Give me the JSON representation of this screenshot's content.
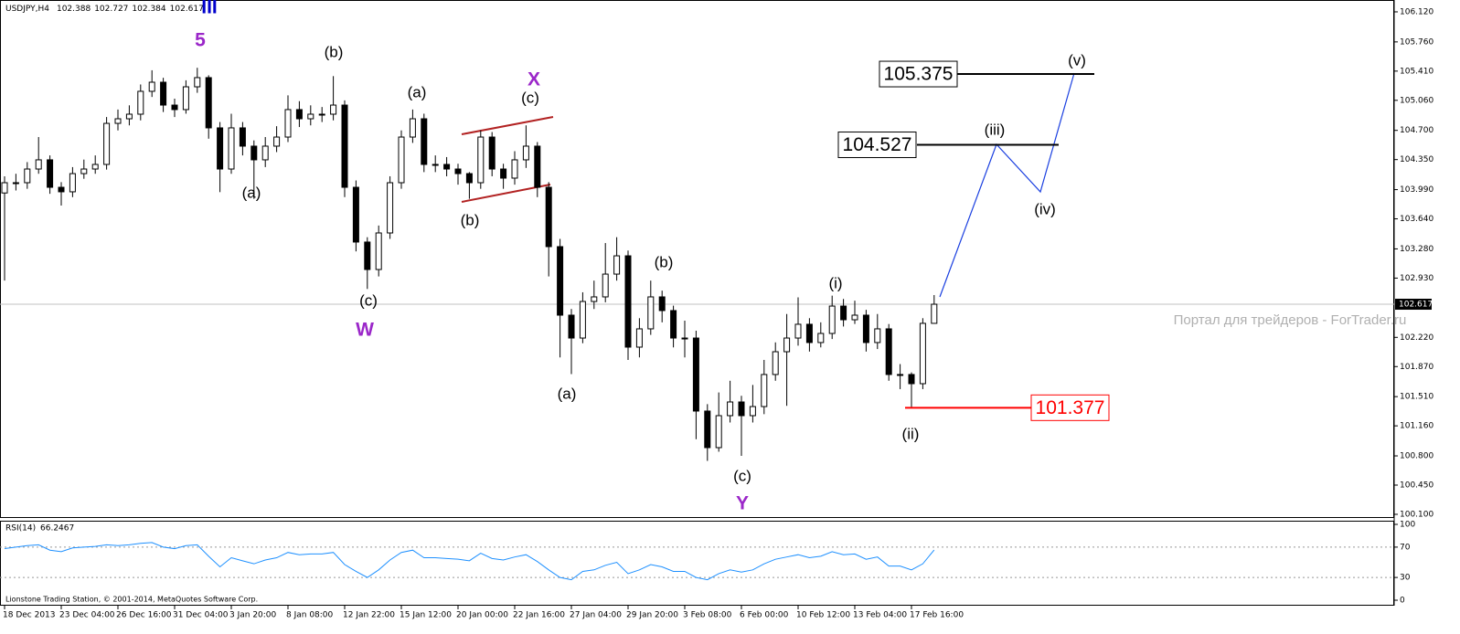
{
  "chart_data": {
    "type": "candlestick",
    "symbol": "USDJPY,H4",
    "categories": [
      "18 Dec 2013",
      null,
      null,
      null,
      null,
      "23 Dec 04:00",
      null,
      null,
      null,
      null,
      "26 Dec 16:00",
      null,
      null,
      null,
      null,
      "31 Dec 04:00",
      null,
      null,
      null,
      null,
      "3 Jan 20:00",
      null,
      null,
      null,
      null,
      "8 Jan 08:00",
      null,
      null,
      null,
      null,
      "12 Jan 22:00",
      null,
      null,
      null,
      null,
      "15 Jan 12:00",
      null,
      null,
      null,
      null,
      "20 Jan 00:00",
      null,
      null,
      null,
      null,
      "22 Jan 16:00",
      null,
      null,
      null,
      null,
      "27 Jan 04:00",
      null,
      null,
      null,
      null,
      "29 Jan 20:00",
      null,
      null,
      null,
      null,
      "3 Feb 08:00",
      null,
      null,
      null,
      null,
      "6 Feb 00:00",
      null,
      null,
      null,
      null,
      "10 Feb 12:00",
      null,
      null,
      null,
      null,
      "13 Feb 04:00",
      null,
      null,
      null,
      null,
      "17 Feb 16:00",
      null,
      null
    ],
    "open": [
      103.95,
      104.073,
      104.073,
      104.237,
      104.347,
      104.018,
      103.964,
      104.182,
      104.237,
      104.292,
      104.784,
      104.839,
      104.894,
      105.168,
      105.277,
      105.003,
      104.949,
      105.222,
      105.332,
      104.73,
      104.237,
      104.73,
      104.511,
      104.347,
      104.511,
      104.62,
      104.949,
      104.839,
      104.894,
      104.894,
      105.003,
      104.018,
      103.362,
      103.033,
      103.471,
      104.073,
      104.62,
      104.839,
      104.292,
      104.292,
      104.237,
      104.182,
      104.073,
      104.62,
      104.237,
      104.128,
      104.347,
      104.511,
      104.018,
      103.307,
      102.486,
      102.212,
      102.65,
      102.705,
      102.978,
      103.197,
      102.103,
      102.322,
      102.705,
      102.541,
      102.212,
      102.212,
      101.337,
      100.899,
      101.282,
      101.446,
      101.282,
      101.391,
      101.775,
      102.048,
      102.212,
      102.377,
      102.158,
      102.267,
      102.595,
      102.431,
      102.486,
      102.158,
      102.322,
      101.775,
      101.775,
      101.665,
      102.388
    ],
    "high": [
      104.15,
      104.18,
      104.32,
      104.62,
      104.4,
      104.08,
      104.26,
      104.35,
      104.4,
      104.86,
      104.95,
      105.0,
      105.25,
      105.42,
      105.33,
      105.08,
      105.3,
      105.45,
      105.36,
      104.8,
      104.9,
      104.8,
      104.58,
      104.62,
      104.75,
      105.12,
      105.05,
      105.0,
      104.98,
      105.35,
      105.06,
      104.1,
      103.42,
      103.56,
      104.15,
      104.7,
      104.95,
      104.9,
      104.4,
      104.38,
      104.3,
      104.2,
      104.7,
      104.68,
      104.3,
      104.45,
      104.76,
      104.56,
      104.08,
      103.4,
      102.56,
      102.76,
      102.9,
      103.35,
      103.42,
      103.26,
      102.45,
      102.9,
      102.78,
      102.6,
      102.42,
      102.3,
      101.42,
      101.56,
      101.7,
      101.52,
      101.65,
      101.95,
      102.16,
      102.5,
      102.7,
      102.45,
      102.4,
      102.72,
      102.68,
      102.66,
      102.55,
      102.5,
      102.38,
      101.9,
      101.8,
      102.45,
      102.727
    ],
    "low": [
      102.9,
      103.98,
      104.0,
      104.18,
      103.94,
      103.8,
      103.9,
      104.12,
      104.18,
      104.23,
      104.7,
      104.76,
      104.82,
      105.1,
      104.92,
      104.86,
      104.9,
      105.15,
      104.6,
      103.96,
      104.18,
      104.4,
      103.88,
      104.26,
      104.44,
      104.56,
      104.74,
      104.76,
      104.8,
      104.82,
      103.9,
      103.25,
      102.8,
      102.95,
      103.4,
      104.0,
      104.55,
      104.2,
      104.2,
      104.15,
      104.05,
      103.88,
      104.0,
      104.15,
      104.0,
      104.05,
      104.25,
      103.9,
      102.95,
      101.98,
      101.78,
      102.15,
      102.56,
      102.64,
      102.9,
      101.95,
      101.98,
      102.25,
      102.4,
      102.1,
      101.98,
      101.0,
      100.74,
      100.85,
      101.2,
      100.8,
      101.2,
      101.3,
      101.7,
      101.4,
      102.12,
      102.05,
      102.1,
      102.2,
      102.35,
      102.38,
      102.05,
      102.08,
      101.7,
      101.6,
      101.38,
      101.6,
      102.384
    ],
    "close": [
      104.073,
      104.073,
      104.237,
      104.347,
      104.018,
      103.964,
      104.182,
      104.237,
      104.292,
      104.784,
      104.839,
      104.894,
      105.168,
      105.277,
      105.003,
      104.949,
      105.222,
      105.332,
      104.73,
      104.237,
      104.73,
      104.511,
      104.347,
      104.511,
      104.62,
      104.949,
      104.839,
      104.894,
      104.894,
      105.003,
      104.018,
      103.362,
      103.033,
      103.471,
      104.073,
      104.62,
      104.839,
      104.292,
      104.292,
      104.237,
      104.182,
      104.073,
      104.62,
      104.237,
      104.128,
      104.347,
      104.511,
      104.018,
      103.307,
      102.486,
      102.212,
      102.65,
      102.705,
      102.978,
      103.197,
      102.103,
      102.322,
      102.705,
      102.541,
      102.212,
      102.212,
      101.337,
      100.899,
      101.282,
      101.446,
      101.282,
      101.391,
      101.775,
      102.048,
      102.212,
      102.377,
      102.158,
      102.267,
      102.595,
      102.431,
      102.486,
      102.158,
      102.322,
      101.775,
      101.775,
      101.665,
      102.388,
      102.617
    ],
    "ylim": [
      100.067,
      106.262
    ],
    "yticks": [
      {
        "value": 106.12,
        "label": "106.120"
      },
      {
        "value": 105.76,
        "label": "105.760"
      },
      {
        "value": 105.41,
        "label": "105.410"
      },
      {
        "value": 105.06,
        "label": "105.060"
      },
      {
        "value": 104.7,
        "label": "104.700"
      },
      {
        "value": 104.35,
        "label": "104.350"
      },
      {
        "value": 103.99,
        "label": "103.990"
      },
      {
        "value": 103.64,
        "label": "103.640"
      },
      {
        "value": 103.28,
        "label": "103.280"
      },
      {
        "value": 102.93,
        "label": "102.930"
      },
      {
        "value": 102.22,
        "label": "102.220"
      },
      {
        "value": 101.87,
        "label": "101.870"
      },
      {
        "value": 101.51,
        "label": "101.510"
      },
      {
        "value": 101.16,
        "label": "101.160"
      },
      {
        "value": 100.8,
        "label": "100.800"
      },
      {
        "value": 100.45,
        "label": "100.450"
      },
      {
        "value": 100.1,
        "label": "100.100"
      }
    ],
    "levels": [
      {
        "value": 105.375,
        "color": "#000000"
      },
      {
        "value": 104.527,
        "color": "#000000"
      },
      {
        "value": 101.377,
        "color": "#ff0000"
      }
    ],
    "annotations": [
      {
        "text": "III",
        "color": "#0000cc"
      },
      {
        "text": "5",
        "color": "#9b27c9"
      },
      {
        "text": "(b)",
        "color": "#000000"
      },
      {
        "text": "(a)",
        "color": "#000000"
      },
      {
        "text": "(c)",
        "color": "#000000"
      },
      {
        "text": "W",
        "color": "#9b27c9"
      },
      {
        "text": "(a)",
        "color": "#000000"
      },
      {
        "text": "X",
        "color": "#9b27c9"
      },
      {
        "text": "(c)",
        "color": "#000000"
      },
      {
        "text": "(b)",
        "color": "#000000"
      },
      {
        "text": "(a)",
        "color": "#000000"
      },
      {
        "text": "(b)",
        "color": "#000000"
      },
      {
        "text": "(c)",
        "color": "#000000"
      },
      {
        "text": "Y",
        "color": "#9b27c9"
      },
      {
        "text": "(i)",
        "color": "#000000"
      },
      {
        "text": "(ii)",
        "color": "#000000"
      },
      {
        "text": "(iii)",
        "color": "#000000"
      },
      {
        "text": "(iv)",
        "color": "#000000"
      },
      {
        "text": "(v)",
        "color": "#000000"
      }
    ],
    "watermark": "Портал для трейдеров - ForTrader.ru",
    "footer": "Lionstone Trading Station, © 2001-2014, MetaQuotes Software Corp.",
    "indicator": {
      "type": "line",
      "name": "RSI(14)",
      "color": "#1e90ff",
      "values": [
        68,
        70,
        72,
        73,
        66,
        64,
        69,
        70,
        71,
        73,
        72,
        73,
        75,
        76,
        70,
        68,
        72,
        73,
        58,
        44,
        56,
        52,
        48,
        53,
        56,
        63,
        60,
        61,
        61,
        63,
        47,
        38,
        30,
        40,
        53,
        63,
        66,
        56,
        56,
        55,
        54,
        52,
        62,
        55,
        53,
        57,
        60,
        51,
        40,
        30,
        27,
        38,
        40,
        46,
        50,
        35,
        40,
        47,
        44,
        38,
        38,
        30,
        27,
        35,
        40,
        37,
        40,
        48,
        54,
        57,
        60,
        56,
        58,
        64,
        60,
        61,
        54,
        57,
        45,
        45,
        40,
        48,
        66.2467
      ],
      "ylim": [
        -6,
        104.8
      ],
      "yticks": [
        100,
        70,
        30,
        0
      ],
      "levels": [
        70,
        30
      ]
    }
  }
}
